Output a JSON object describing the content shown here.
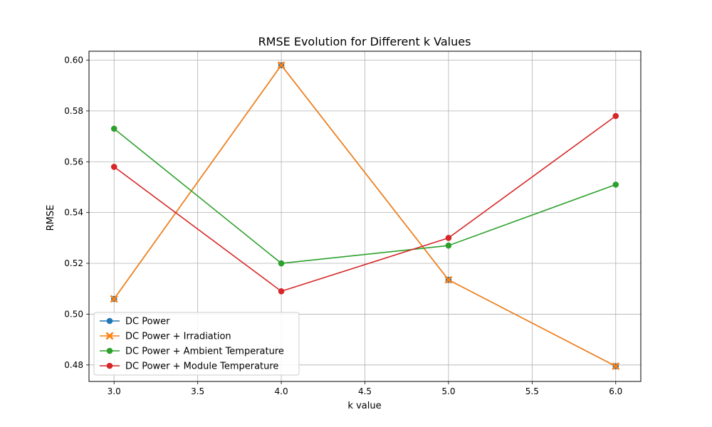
{
  "chart_data": {
    "type": "line",
    "title": "RMSE Evolution for Different k Values",
    "xlabel": "k value",
    "ylabel": "RMSE",
    "x": [
      3.0,
      4.0,
      5.0,
      6.0
    ],
    "xlim": [
      2.85,
      6.15
    ],
    "ylim": [
      0.4735,
      0.6035
    ],
    "xticks": [
      3.0,
      3.5,
      4.0,
      4.5,
      5.0,
      5.5,
      6.0
    ],
    "xtick_labels": [
      "3.0",
      "3.5",
      "4.0",
      "4.5",
      "5.0",
      "5.5",
      "6.0"
    ],
    "yticks": [
      0.48,
      0.5,
      0.52,
      0.54,
      0.56,
      0.58,
      0.6
    ],
    "ytick_labels": [
      "0.48",
      "0.50",
      "0.52",
      "0.54",
      "0.56",
      "0.58",
      "0.60"
    ],
    "grid": true,
    "legend_position": "lower-left",
    "series": [
      {
        "name": "DC Power",
        "values": [
          0.506,
          0.598,
          0.5135,
          0.4795
        ],
        "color": "#1f77b4",
        "marker": "circle"
      },
      {
        "name": "DC Power + Irradiation",
        "values": [
          0.506,
          0.598,
          0.5135,
          0.4795
        ],
        "color": "#ff7f0e",
        "marker": "x"
      },
      {
        "name": "DC Power + Ambient Temperature",
        "values": [
          0.573,
          0.52,
          0.527,
          0.551
        ],
        "color": "#2ca02c",
        "marker": "circle"
      },
      {
        "name": "DC Power + Module Temperature",
        "values": [
          0.558,
          0.509,
          0.53,
          0.578
        ],
        "color": "#d62728",
        "marker": "circle"
      }
    ]
  }
}
